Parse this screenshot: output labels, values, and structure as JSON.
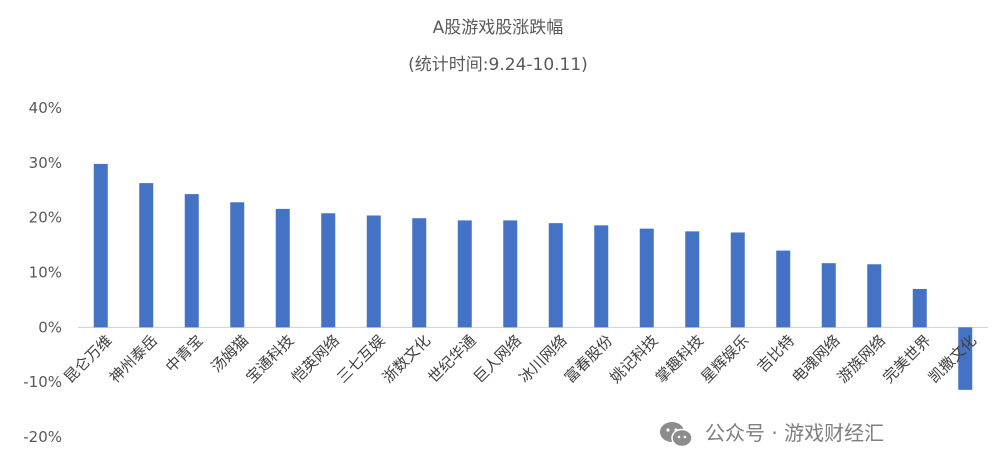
{
  "chart_data": {
    "type": "bar",
    "title": "A股游戏股涨跌幅",
    "subtitle": "(统计时间:9.24-10.11)",
    "xlabel": "",
    "ylabel": "",
    "categories": [
      "昆仑万维",
      "神州泰岳",
      "中青宝",
      "汤姆猫",
      "宝通科技",
      "恺英网络",
      "三七互娱",
      "浙数文化",
      "世纪华通",
      "巨人网络",
      "冰川网络",
      "富春股份",
      "姚记科技",
      "掌趣科技",
      "星辉娱乐",
      "吉比特",
      "电魂网络",
      "游族网络",
      "完美世界",
      "凯撒文化"
    ],
    "values": [
      29.8,
      26.3,
      24.3,
      22.8,
      21.6,
      20.8,
      20.4,
      19.9,
      19.5,
      19.5,
      19.0,
      18.6,
      18.0,
      17.5,
      17.3,
      14.0,
      11.7,
      11.5,
      7.0,
      -11.4
    ],
    "ylim": [
      -20,
      40
    ],
    "yticks": [
      "-20%",
      "-10%",
      "0%",
      "10%",
      "20%",
      "30%",
      "40%"
    ],
    "ytick_values": [
      -20,
      -10,
      0,
      10,
      20,
      30,
      40
    ],
    "bar_color": "#4472C4",
    "grid": false,
    "legend": "none"
  },
  "watermark": {
    "text": "公众号 · 游戏财经汇",
    "icon": "wechat-icon"
  }
}
